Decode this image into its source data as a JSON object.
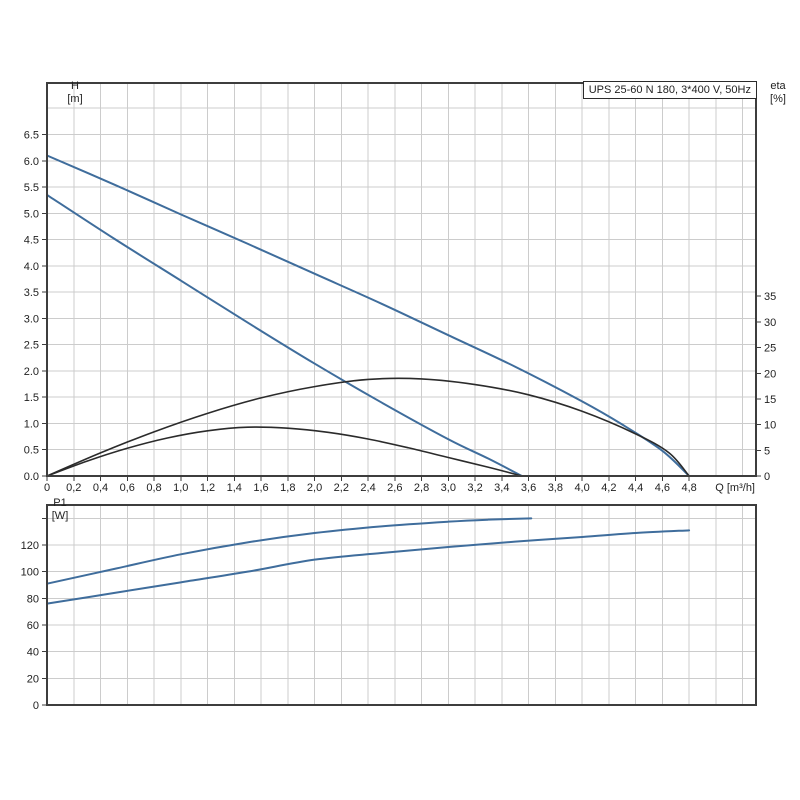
{
  "title_box": {
    "text": "UPS 25-60 N 180, 3*400 V, 50Hz"
  },
  "labels": {
    "h_axis": "H",
    "h_unit": "[m]",
    "eta_axis": "eta",
    "eta_unit": "[%]",
    "p1_axis": "P1",
    "p1_unit": "[W]",
    "q_axis": "Q [m³/h]"
  },
  "colors": {
    "curve_blue": "#3f6d9c",
    "curve_black": "#2b2b2b",
    "grid": "#cccccc",
    "frame": "#3d3d3d",
    "text": "#1f1f1f",
    "background": "#ffffff"
  },
  "chart_data": [
    {
      "type": "line",
      "id": "hq-eta",
      "title": "UPS 25-60 N 180, 3*400 V, 50Hz",
      "xlabel": "Q [m³/h]",
      "ylabel": "H [m]",
      "y2label": "eta [%]",
      "xlim": [
        0,
        5.3
      ],
      "ylim": [
        0,
        7.48
      ],
      "y2lim": [
        0,
        76.5
      ],
      "grid_on": true,
      "grid": {
        "x_step": 0.2,
        "x_max": 5.2,
        "y_step": 0.5,
        "y_max": 7.0
      },
      "x_ticks": [
        [
          0,
          "0"
        ],
        [
          0.2,
          "0,2"
        ],
        [
          0.4,
          "0,4"
        ],
        [
          0.6,
          "0,6"
        ],
        [
          0.8,
          "0,8"
        ],
        [
          1.0,
          "1,0"
        ],
        [
          1.2,
          "1,2"
        ],
        [
          1.4,
          "1,4"
        ],
        [
          1.6,
          "1,6"
        ],
        [
          1.8,
          "1,8"
        ],
        [
          2.0,
          "2,0"
        ],
        [
          2.2,
          "2,2"
        ],
        [
          2.4,
          "2,4"
        ],
        [
          2.6,
          "2,6"
        ],
        [
          2.8,
          "2,8"
        ],
        [
          3.0,
          "3,0"
        ],
        [
          3.2,
          "3,2"
        ],
        [
          3.4,
          "3,4"
        ],
        [
          3.6,
          "3,6"
        ],
        [
          3.8,
          "3,8"
        ],
        [
          4.0,
          "4,0"
        ],
        [
          4.2,
          "4,2"
        ],
        [
          4.4,
          "4,4"
        ],
        [
          4.6,
          "4,6"
        ],
        [
          4.8,
          "4,8"
        ]
      ],
      "y_ticks": [
        [
          0,
          "0.0"
        ],
        [
          0.5,
          "0.5"
        ],
        [
          1.0,
          "1.0"
        ],
        [
          1.5,
          "1.5"
        ],
        [
          2.0,
          "2.0"
        ],
        [
          2.5,
          "2.5"
        ],
        [
          3.0,
          "3.0"
        ],
        [
          3.5,
          "3.5"
        ],
        [
          4.0,
          "4.0"
        ],
        [
          4.5,
          "4.5"
        ],
        [
          5.0,
          "5.0"
        ],
        [
          5.5,
          "5.5"
        ],
        [
          6.0,
          "6.0"
        ],
        [
          6.5,
          "6.5"
        ]
      ],
      "y2_ticks": [
        [
          0,
          "0"
        ],
        [
          5,
          "5"
        ],
        [
          10,
          "10"
        ],
        [
          15,
          "15"
        ],
        [
          20,
          "20"
        ],
        [
          25,
          "25"
        ],
        [
          30,
          "30"
        ],
        [
          35,
          "35"
        ]
      ],
      "series": [
        {
          "name": "H max speed",
          "axis": "y",
          "color": "#3f6d9c",
          "stroke_width": 2,
          "points": [
            [
              0,
              6.1
            ],
            [
              0.5,
              5.55
            ],
            [
              1.0,
              4.98
            ],
            [
              1.5,
              4.42
            ],
            [
              2.0,
              3.85
            ],
            [
              2.5,
              3.28
            ],
            [
              3.0,
              2.68
            ],
            [
              3.5,
              2.08
            ],
            [
              4.0,
              1.42
            ],
            [
              4.3,
              0.98
            ],
            [
              4.6,
              0.48
            ],
            [
              4.8,
              0
            ]
          ]
        },
        {
          "name": "H min speed",
          "axis": "y",
          "color": "#3f6d9c",
          "stroke_width": 2,
          "points": [
            [
              0,
              5.35
            ],
            [
              0.5,
              4.52
            ],
            [
              1.0,
              3.72
            ],
            [
              1.5,
              2.92
            ],
            [
              2.0,
              2.14
            ],
            [
              2.5,
              1.4
            ],
            [
              3.0,
              0.7
            ],
            [
              3.3,
              0.33
            ],
            [
              3.55,
              0
            ]
          ]
        },
        {
          "name": "eta max speed",
          "axis": "y2",
          "color": "#2b2b2b",
          "stroke_width": 1.6,
          "points": [
            [
              0,
              0
            ],
            [
              0.4,
              4.5
            ],
            [
              0.8,
              8.6
            ],
            [
              1.2,
              12.2
            ],
            [
              1.6,
              15.2
            ],
            [
              2.0,
              17.4
            ],
            [
              2.4,
              18.8
            ],
            [
              2.8,
              18.9
            ],
            [
              3.2,
              17.8
            ],
            [
              3.6,
              15.8
            ],
            [
              4.0,
              12.6
            ],
            [
              4.4,
              8.2
            ],
            [
              4.65,
              4.5
            ],
            [
              4.8,
              0
            ]
          ]
        },
        {
          "name": "eta min speed",
          "axis": "y2",
          "color": "#2b2b2b",
          "stroke_width": 1.6,
          "points": [
            [
              0,
              0
            ],
            [
              0.3,
              2.9
            ],
            [
              0.6,
              5.4
            ],
            [
              0.9,
              7.4
            ],
            [
              1.2,
              8.8
            ],
            [
              1.5,
              9.5
            ],
            [
              1.8,
              9.3
            ],
            [
              2.1,
              8.5
            ],
            [
              2.4,
              7.2
            ],
            [
              2.7,
              5.5
            ],
            [
              3.0,
              3.6
            ],
            [
              3.3,
              1.7
            ],
            [
              3.55,
              0
            ]
          ]
        }
      ]
    },
    {
      "type": "line",
      "id": "p1",
      "title": "",
      "xlabel": "Q [m³/h]",
      "ylabel": "P1 [W]",
      "xlim": [
        0,
        5.3
      ],
      "ylim": [
        0,
        150
      ],
      "grid_on": true,
      "grid": {
        "x_step": 0.2,
        "x_max": 5.2,
        "y_step": 20,
        "y_max": 140
      },
      "y_ticks": [
        [
          0,
          "0"
        ],
        [
          20,
          "20"
        ],
        [
          40,
          "40"
        ],
        [
          60,
          "60"
        ],
        [
          80,
          "80"
        ],
        [
          100,
          "100"
        ],
        [
          120,
          "120"
        ],
        [
          140,
          ""
        ]
      ],
      "series": [
        {
          "name": "P1 max speed",
          "axis": "y",
          "color": "#3f6d9c",
          "stroke_width": 2,
          "points": [
            [
              0,
              91
            ],
            [
              0.5,
              102
            ],
            [
              1.0,
              113
            ],
            [
              1.5,
              122
            ],
            [
              2.0,
              129
            ],
            [
              2.5,
              134
            ],
            [
              3.0,
              137.5
            ],
            [
              3.3,
              139
            ],
            [
              3.62,
              140
            ]
          ]
        },
        {
          "name": "P1 min speed",
          "axis": "y",
          "color": "#3f6d9c",
          "stroke_width": 2,
          "points": [
            [
              0,
              76
            ],
            [
              0.5,
              84
            ],
            [
              1.0,
              92
            ],
            [
              1.5,
              100
            ],
            [
              2.0,
              109
            ],
            [
              2.5,
              114
            ],
            [
              3.0,
              118.5
            ],
            [
              3.5,
              122.5
            ],
            [
              4.0,
              126
            ],
            [
              4.4,
              129
            ],
            [
              4.8,
              131
            ]
          ]
        }
      ]
    }
  ]
}
